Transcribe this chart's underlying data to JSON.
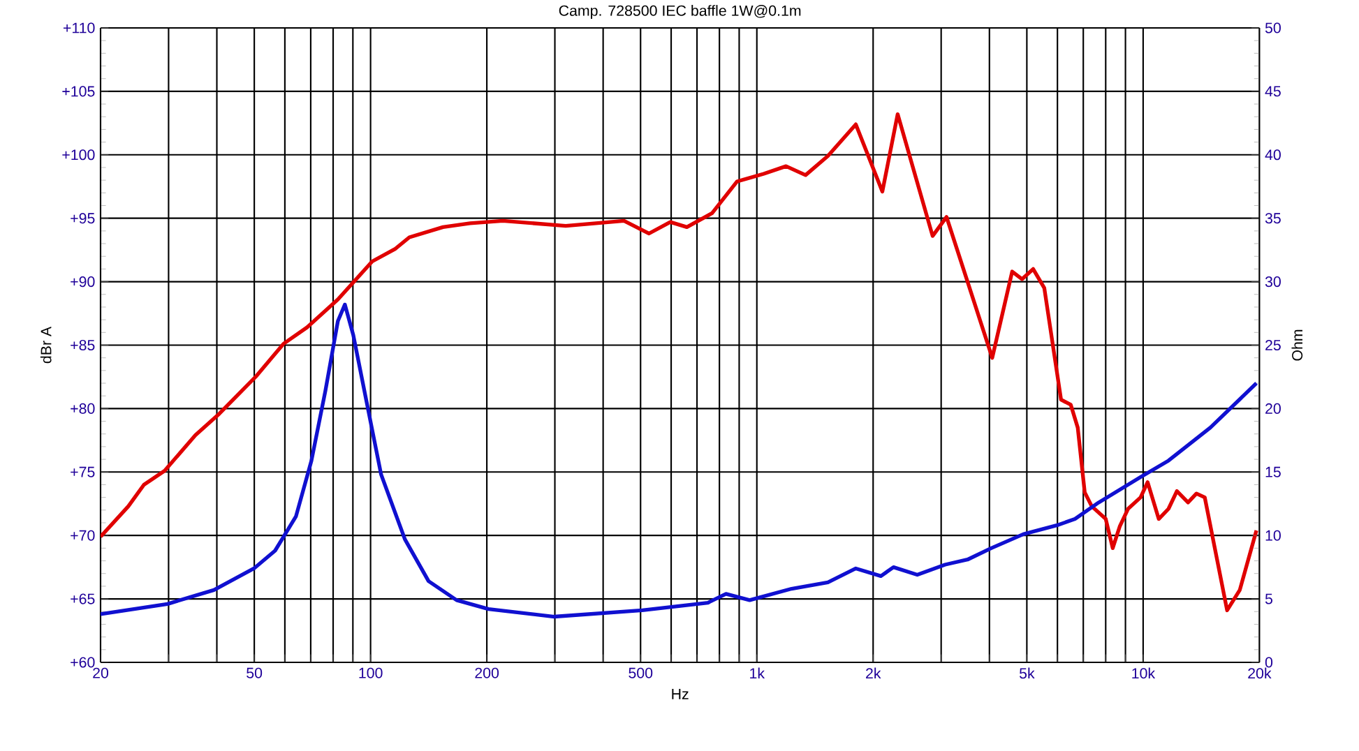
{
  "chart_data": {
    "type": "line",
    "title": "Camp. 728500 IEC baffle 1W@0.1m",
    "xlabel": "Hz",
    "ylabel": "dBr A",
    "y2label": "Ohm",
    "log": "x",
    "grid": true,
    "line_style": "solid",
    "xlim": [
      20,
      20000
    ],
    "xticks": [
      20,
      {
        "value": 30,
        "label": null
      },
      {
        "value": 40,
        "label": null
      },
      50,
      {
        "value": 60,
        "label": null
      },
      {
        "value": 70,
        "label": null
      },
      {
        "value": 80,
        "label": null
      },
      {
        "value": 90,
        "label": null
      },
      100,
      200,
      {
        "value": 300,
        "label": null
      },
      {
        "value": 400,
        "label": null
      },
      500,
      {
        "value": 600,
        "label": null
      },
      {
        "value": 700,
        "label": null
      },
      {
        "value": 800,
        "label": null
      },
      {
        "value": 900,
        "label": null
      },
      {
        "value": 1000,
        "label": "1k"
      },
      {
        "value": 2000,
        "label": "2k"
      },
      {
        "value": 3000,
        "label": null
      },
      {
        "value": 4000,
        "label": null
      },
      {
        "value": 5000,
        "label": "5k"
      },
      {
        "value": 6000,
        "label": null
      },
      {
        "value": 7000,
        "label": null
      },
      {
        "value": 8000,
        "label": null
      },
      {
        "value": 9000,
        "label": null
      },
      {
        "value": 10000,
        "label": "10k"
      },
      {
        "value": 20000,
        "label": "20k"
      }
    ],
    "ylim": [
      60,
      110
    ],
    "yticks": [
      {
        "value": 60,
        "label": "+60"
      },
      {
        "value": 65,
        "label": "+65"
      },
      {
        "value": 70,
        "label": "+70"
      },
      {
        "value": 75,
        "label": "+75"
      },
      {
        "value": 80,
        "label": "+80"
      },
      {
        "value": 85,
        "label": "+85"
      },
      {
        "value": 90,
        "label": "+90"
      },
      {
        "value": 95,
        "label": "+95"
      },
      {
        "value": 100,
        "label": "+100"
      },
      {
        "value": 105,
        "label": "+105"
      },
      {
        "value": 110,
        "label": "+110"
      }
    ],
    "y2lim": [
      0,
      50
    ],
    "y2ticks": [
      0,
      5,
      10,
      15,
      20,
      25,
      30,
      35,
      40,
      45,
      50
    ],
    "series": [
      {
        "color": "#e00000",
        "x": [
          20,
          23.6,
          25.9,
          29.3,
          35.2,
          40.6,
          50.4,
          59.5,
          68.5,
          82.3,
          101,
          116,
          126,
          154,
          181,
          220,
          320,
          453,
          526,
          597,
          659,
          766,
          889,
          1042,
          1190,
          1337,
          1527,
          1804,
          2113,
          2315,
          2851,
          3098,
          4068,
          4581,
          4857,
          5191,
          5548,
          6131,
          6497,
          6772,
          7060,
          7362,
          8002,
          8342,
          8696,
          9140,
          9849,
          10270,
          10976,
          11633,
          12230,
          13070,
          13740,
          14440,
          16500,
          17790,
          19650
        ],
        "values": [
          69.9,
          72.3,
          74.0,
          75.1,
          77.9,
          79.6,
          82.5,
          85.1,
          86.4,
          88.6,
          91.6,
          92.6,
          93.5,
          94.3,
          94.6,
          94.8,
          94.4,
          94.8,
          93.8,
          94.7,
          94.3,
          95.4,
          97.9,
          98.5,
          99.1,
          98.4,
          99.9,
          102.4,
          97.1,
          103.2,
          93.6,
          95.1,
          84.0,
          90.8,
          90.2,
          91.0,
          89.5,
          80.7,
          80.3,
          78.5,
          73.4,
          72.3,
          71.3,
          69.0,
          70.7,
          72.1,
          73.0,
          74.2,
          71.3,
          72.1,
          73.5,
          72.6,
          73.3,
          73.0,
          64.1,
          65.7,
          70.4
        ]
      },
      {
        "color": "#1010d0",
        "axis": "y2",
        "x": [
          20,
          29.8,
          39.3,
          49.9,
          56.6,
          64.1,
          70.3,
          76.4,
          82.3,
          85.8,
          90.2,
          98.0,
          106.5,
          122.7,
          141.3,
          167,
          202,
          299,
          505,
          747,
          832,
          958,
          1230,
          1527,
          1804,
          2095,
          2258,
          2602,
          3072,
          3511,
          4044,
          4896,
          5978,
          6662,
          7674,
          9849,
          11633,
          14930,
          19650
        ],
        "values": [
          3.8,
          4.6,
          5.7,
          7.4,
          8.8,
          11.5,
          15.9,
          21.4,
          26.9,
          28.2,
          25.8,
          20.3,
          14.8,
          9.7,
          6.4,
          4.9,
          4.2,
          3.6,
          4.1,
          4.7,
          5.4,
          4.9,
          5.8,
          6.3,
          7.4,
          6.8,
          7.5,
          6.9,
          7.7,
          8.1,
          9.0,
          10.1,
          10.8,
          11.3,
          12.6,
          14.6,
          15.9,
          18.5,
          22.0
        ]
      }
    ]
  }
}
